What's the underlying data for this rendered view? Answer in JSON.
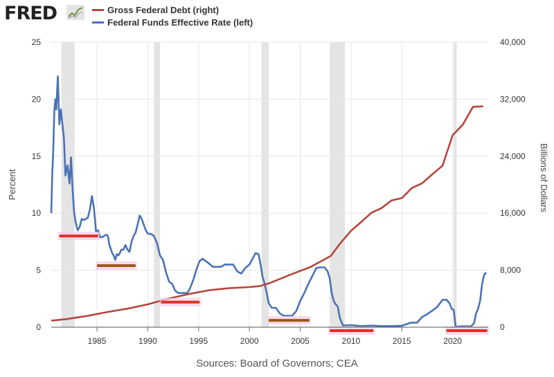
{
  "header": {
    "logo_text": "FRED",
    "logo_icon": "line-graph-icon"
  },
  "source_text": "Sources: Board of Governors; CEA",
  "chart_data": {
    "type": "line",
    "colors": {
      "debt": "#b5453c",
      "rate": "#4a72b5",
      "recession": "#e4e4e4",
      "red_bar": "#dd3322",
      "olive_bar": "#9b5a16",
      "highlight": "#f6cdeb"
    },
    "legend": [
      {
        "name": "Gross Federal Debt (right)",
        "color": "#b5453c"
      },
      {
        "name": "Federal Funds Effective Rate (left)",
        "color": "#4a72b5"
      }
    ],
    "xlim": [
      1980.5,
      2023.5
    ],
    "x_ticks": [
      1985,
      1990,
      1995,
      2000,
      2005,
      2010,
      2015,
      2020
    ],
    "x_tick_labels": [
      "1985",
      "1990",
      "1995",
      "2000",
      "2005",
      "2010",
      "2015",
      "2020"
    ],
    "left_axis": {
      "label": "Percent",
      "ylim": [
        0,
        25
      ],
      "ticks": [
        0,
        5,
        10,
        15,
        20,
        25
      ],
      "tick_labels": [
        "0",
        "5",
        "10",
        "15",
        "20",
        "25"
      ]
    },
    "right_axis": {
      "label": "Billions of Dollars",
      "ylim": [
        0,
        40000
      ],
      "ticks": [
        0,
        8000,
        16000,
        24000,
        32000,
        40000
      ],
      "tick_labels": [
        "0",
        "8,000",
        "16,000",
        "24,000",
        "32,000",
        "40,000"
      ]
    },
    "recessions": [
      [
        1981.5,
        1982.8
      ],
      [
        1990.6,
        1991.2
      ],
      [
        2001.2,
        2001.9
      ],
      [
        2007.9,
        2009.4
      ],
      [
        2020.1,
        2020.4
      ]
    ],
    "series": [
      {
        "name": "Federal Funds Effective Rate (left)",
        "axis": "left",
        "x": [
          1980.5,
          1980.6,
          1980.7,
          1980.8,
          1980.9,
          1981.0,
          1981.15,
          1981.3,
          1981.45,
          1981.6,
          1981.75,
          1981.9,
          1982.1,
          1982.3,
          1982.45,
          1982.6,
          1982.75,
          1982.9,
          1983.1,
          1983.3,
          1983.5,
          1983.7,
          1983.9,
          1984.1,
          1984.3,
          1984.5,
          1984.7,
          1984.9,
          1985.1,
          1985.3,
          1985.5,
          1985.7,
          1985.85,
          1986.0,
          1986.1,
          1986.2,
          1986.35,
          1986.5,
          1986.65,
          1986.8,
          1986.95,
          1987.0,
          1987.1,
          1987.25,
          1987.4,
          1987.6,
          1987.8,
          1988.0,
          1988.2,
          1988.4,
          1988.6,
          1988.8,
          1989.0,
          1989.2,
          1989.4,
          1989.6,
          1989.8,
          1990.0,
          1990.3,
          1990.6,
          1990.9,
          1991.2,
          1991.5,
          1991.8,
          1992.1,
          1992.4,
          1992.7,
          1993.0,
          1993.3,
          1993.6,
          1993.9,
          1994.2,
          1994.5,
          1994.8,
          1995.1,
          1995.4,
          1995.7,
          1996.0,
          1996.4,
          1996.8,
          1997.2,
          1997.6,
          1998.0,
          1998.4,
          1998.8,
          1999.2,
          1999.6,
          2000.0,
          2000.3,
          2000.6,
          2000.9,
          2001.1,
          2001.3,
          2001.5,
          2001.7,
          2001.9,
          2002.2,
          2002.6,
          2003.0,
          2003.4,
          2003.8,
          2004.2,
          2004.6,
          2005.0,
          2005.4,
          2005.8,
          2006.2,
          2006.6,
          2007.0,
          2007.4,
          2007.7,
          2007.9,
          2008.1,
          2008.3,
          2008.5,
          2008.7,
          2008.9,
          2009.2,
          2010.0,
          2011.0,
          2012.0,
          2013.0,
          2014.0,
          2015.0,
          2015.9,
          2016.5,
          2017.0,
          2017.5,
          2018.0,
          2018.5,
          2019.0,
          2019.4,
          2019.7,
          2019.9,
          2020.1,
          2020.3,
          2021.0,
          2021.8,
          2022.1,
          2022.3,
          2022.5,
          2022.7,
          2022.9,
          2023.1,
          2023.3
        ],
        "values": [
          10.0,
          13.5,
          15.5,
          18.9,
          20.0,
          19.1,
          22.0,
          17.8,
          19.1,
          17.8,
          16.6,
          13.3,
          14.2,
          12.6,
          14.9,
          12.1,
          10.1,
          9.2,
          8.5,
          8.8,
          9.5,
          9.4,
          9.5,
          9.6,
          10.3,
          11.5,
          10.5,
          8.4,
          8.5,
          7.9,
          7.9,
          8.0,
          8.1,
          8.1,
          7.9,
          7.3,
          6.9,
          6.5,
          6.3,
          5.9,
          6.4,
          6.4,
          6.3,
          6.5,
          6.8,
          6.8,
          7.2,
          6.8,
          6.6,
          7.5,
          8.0,
          8.3,
          9.0,
          9.8,
          9.5,
          9.0,
          8.5,
          8.2,
          8.2,
          8.0,
          7.4,
          6.3,
          5.9,
          4.8,
          4.0,
          3.8,
          3.2,
          3.0,
          3.0,
          3.0,
          3.0,
          3.5,
          4.2,
          5.1,
          5.8,
          6.0,
          5.8,
          5.6,
          5.3,
          5.3,
          5.3,
          5.5,
          5.5,
          5.5,
          4.9,
          4.7,
          5.2,
          5.5,
          6.0,
          6.5,
          6.4,
          5.5,
          4.4,
          3.8,
          3.0,
          2.1,
          1.7,
          1.7,
          1.2,
          1.0,
          1.0,
          1.0,
          1.4,
          2.3,
          3.0,
          3.8,
          4.5,
          5.2,
          5.25,
          5.25,
          4.9,
          4.3,
          3.0,
          2.3,
          2.0,
          1.8,
          0.8,
          0.15,
          0.18,
          0.1,
          0.14,
          0.1,
          0.1,
          0.13,
          0.4,
          0.4,
          0.9,
          1.15,
          1.45,
          1.8,
          2.4,
          2.4,
          2.1,
          1.6,
          1.55,
          0.05,
          0.08,
          0.08,
          0.33,
          1.2,
          1.6,
          2.3,
          3.8,
          4.6,
          4.8
        ]
      },
      {
        "name": "Gross Federal Debt (right)",
        "axis": "right",
        "x": [
          1980.5,
          1982,
          1984,
          1986,
          1988,
          1990,
          1992,
          1994,
          1996,
          1998,
          2000,
          2001,
          2002,
          2004,
          2006,
          2008,
          2009,
          2010,
          2011,
          2012,
          2013,
          2014,
          2015,
          2016,
          2017,
          2018,
          2019,
          2020,
          2021,
          2022,
          2023
        ],
        "values": [
          909,
          1137,
          1572,
          2125,
          2602,
          3206,
          4002,
          4643,
          5181,
          5478,
          5629,
          5770,
          6198,
          7354,
          8451,
          9986,
          11876,
          13529,
          14764,
          16051,
          16719,
          17794,
          18120,
          19539,
          20206,
          21462,
          22669,
          26945,
          28428,
          30929,
          31000
        ]
      }
    ],
    "annotations": [
      {
        "kind": "red",
        "x0": 1981.3,
        "x1": 1985.1,
        "y": 8.0
      },
      {
        "kind": "olive",
        "x0": 1985.0,
        "x1": 1988.8,
        "y": 5.4
      },
      {
        "kind": "red",
        "x0": 1991.3,
        "x1": 1995.1,
        "y": 2.2
      },
      {
        "kind": "olive",
        "x0": 2001.9,
        "x1": 2005.9,
        "y": 0.6
      },
      {
        "kind": "red",
        "x0": 2007.9,
        "x1": 2012.2,
        "y": -0.3
      },
      {
        "kind": "red",
        "x0": 2019.4,
        "x1": 2023.4,
        "y": -0.3
      }
    ]
  }
}
